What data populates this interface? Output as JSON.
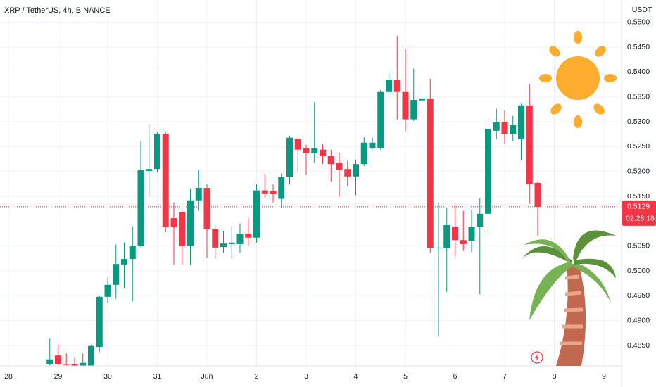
{
  "chart_data": {
    "type": "candlestick",
    "title": "XRP / TetherUS, 4h, BINANCE",
    "y_axis_label": "USDT",
    "up_color": "#089981",
    "down_color": "#f23645",
    "grid": true,
    "categories": [
      "28",
      null,
      null,
      null,
      null,
      null,
      "29",
      null,
      null,
      null,
      null,
      null,
      "30",
      null,
      null,
      null,
      null,
      null,
      "31",
      null,
      null,
      null,
      null,
      null,
      "Jun",
      null,
      null,
      null,
      null,
      null,
      "2",
      null,
      null,
      null,
      null,
      null,
      "3",
      null,
      null,
      null,
      null,
      null,
      "4",
      null,
      null,
      null,
      null,
      null,
      "5",
      null,
      null,
      null,
      null,
      null,
      "6",
      null,
      null,
      null,
      null,
      null,
      "7",
      null,
      null,
      null,
      null,
      null,
      "8",
      null,
      null,
      null,
      null,
      null,
      "9"
    ],
    "open": [
      null,
      null,
      null,
      null,
      null,
      0.4812,
      0.483,
      0.4813,
      0.4812,
      0.4808,
      0.4809,
      0.4847,
      0.4948,
      0.4972,
      0.5013,
      0.5024,
      0.505,
      0.5201,
      0.5205,
      0.5276,
      0.5106,
      0.5118,
      0.505,
      0.5142,
      0.5167,
      0.5085,
      0.5048,
      0.5054,
      0.5054,
      0.5075,
      0.5067,
      0.5162,
      0.516,
      0.5145,
      0.5189,
      0.5265,
      0.5247,
      0.5237,
      0.5244,
      0.5231,
      0.5218,
      0.5205,
      0.519,
      0.5215,
      0.5247,
      0.5247,
      0.536,
      0.5385,
      0.536,
      0.5305,
      0.5343,
      0.5347,
      0.5046,
      0.5046,
      0.5089,
      0.5062,
      0.5061,
      0.5089,
      0.5115,
      0.5282,
      0.53,
      0.5276,
      0.5265,
      0.5333,
      0.5177,
      null,
      null,
      null,
      null,
      null,
      null,
      null,
      null
    ],
    "high": [
      null,
      null,
      null,
      null,
      null,
      0.4864,
      0.4851,
      0.4834,
      0.4825,
      0.4834,
      0.4851,
      0.4951,
      0.4986,
      0.5053,
      0.5057,
      0.5089,
      0.5262,
      0.5293,
      0.5279,
      0.5279,
      0.5138,
      0.5121,
      0.5166,
      0.5203,
      0.5174,
      0.5089,
      0.5081,
      0.5089,
      0.5095,
      0.5106,
      0.5174,
      0.5196,
      0.5174,
      0.5196,
      0.5272,
      0.5268,
      0.5254,
      0.5339,
      0.5255,
      0.5244,
      0.5238,
      0.5221,
      0.5224,
      0.5269,
      0.5269,
      0.5364,
      0.54,
      0.5473,
      0.5446,
      0.5407,
      0.5373,
      0.5387,
      0.5138,
      0.5128,
      0.5135,
      0.5121,
      0.5123,
      0.5146,
      0.5299,
      0.5326,
      0.5323,
      0.5312,
      0.5336,
      0.5375,
      0.518,
      null,
      null,
      null,
      null,
      null,
      null,
      null,
      null
    ],
    "low": [
      null,
      null,
      null,
      null,
      null,
      0.4805,
      0.4805,
      0.48,
      0.4795,
      0.4795,
      0.48,
      0.4837,
      0.4936,
      0.4944,
      0.4965,
      0.4939,
      0.5048,
      0.5149,
      0.5198,
      0.5078,
      0.5013,
      0.5013,
      0.5013,
      0.5121,
      0.5027,
      0.5027,
      0.5036,
      0.5027,
      0.5036,
      0.505,
      0.5057,
      0.5147,
      0.5138,
      0.5126,
      0.5174,
      0.5197,
      0.5194,
      0.5217,
      0.5215,
      0.518,
      0.5149,
      0.517,
      0.5152,
      0.5211,
      0.5244,
      0.5244,
      0.5357,
      0.5305,
      0.5281,
      0.5302,
      0.5323,
      0.5036,
      0.4868,
      0.4958,
      0.5029,
      0.504,
      0.5038,
      0.4953,
      0.5078,
      0.5265,
      0.5255,
      0.5262,
      0.5223,
      0.5135,
      0.5071,
      null,
      null,
      null,
      null,
      null,
      null,
      null,
      null
    ],
    "close": [
      null,
      null,
      null,
      null,
      null,
      0.4822,
      0.4812,
      0.4811,
      0.4808,
      0.4815,
      0.4849,
      0.4948,
      0.4972,
      0.5014,
      0.5024,
      0.505,
      0.5203,
      0.5205,
      0.5276,
      0.5088,
      0.5088,
      0.505,
      0.5142,
      0.5167,
      0.5085,
      0.5047,
      0.5055,
      0.5057,
      0.5075,
      0.5067,
      0.5162,
      0.5156,
      0.5155,
      0.5189,
      0.5268,
      0.5244,
      0.5237,
      0.5247,
      0.5231,
      0.5215,
      0.5203,
      0.519,
      0.5215,
      0.5258,
      0.5258,
      0.536,
      0.5385,
      0.536,
      0.5305,
      0.5344,
      0.5347,
      0.5046,
      0.5047,
      0.5092,
      0.5062,
      0.5054,
      0.5089,
      0.5115,
      0.5285,
      0.5299,
      0.5276,
      0.5293,
      0.5333,
      0.5174,
      0.5129,
      null,
      null,
      null,
      null,
      null,
      null,
      null,
      null
    ],
    "ylim": [
      0.4809,
      0.5545
    ],
    "yticks": [
      {
        "value": 0.485,
        "label": "0.4850"
      },
      {
        "value": 0.49,
        "label": "0.4900"
      },
      {
        "value": 0.495,
        "label": "0.4950"
      },
      {
        "value": 0.5,
        "label": "0.5000"
      },
      {
        "value": 0.505,
        "label": "0.5050"
      },
      {
        "value": 0.515,
        "label": "0.5150"
      },
      {
        "value": 0.52,
        "label": "0.5200"
      },
      {
        "value": 0.525,
        "label": "0.5250"
      },
      {
        "value": 0.53,
        "label": "0.5300"
      },
      {
        "value": 0.535,
        "label": "0.5350"
      },
      {
        "value": 0.54,
        "label": "0.5400"
      },
      {
        "value": 0.545,
        "label": "0.5450"
      },
      {
        "value": 0.55,
        "label": "0.5500"
      }
    ],
    "last_price": 0.5129,
    "countdown": "02:28:18"
  }
}
